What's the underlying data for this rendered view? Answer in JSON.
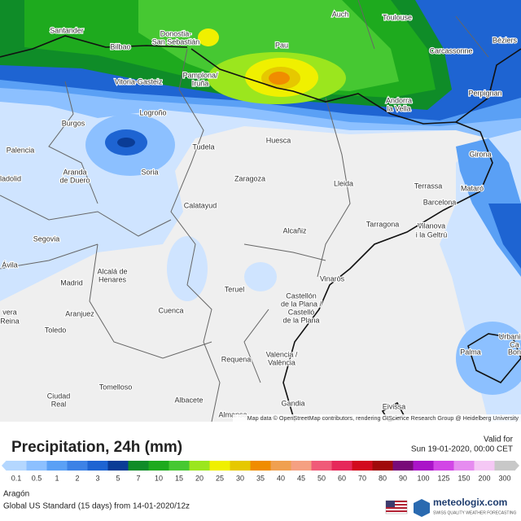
{
  "map": {
    "places": [
      "Santander",
      "Bilbao",
      "Donostia-",
      "San Sebastián",
      "Auch",
      "Toulouse",
      "Béziers",
      "Pau",
      "Carcassonne",
      "Vitoria-Gasteiz",
      "Pamplona/",
      "Iruña",
      "Perpignan",
      "Andorra",
      "la Vella",
      "Logroño",
      "Burgos",
      "Huesca",
      "Tudela",
      "Girona",
      "Palencia",
      "Aranda",
      "de Duero",
      "Soria",
      "Zaragoza",
      "Lleida",
      "Terrassa",
      "Mataró",
      "lladolid",
      "Barcelona",
      "Calatayud",
      "Tarragona",
      "Vilanova",
      "i la Geltrú",
      "Alcañiz",
      "Segovia",
      "Ávila",
      "Alcalá de",
      "Henares",
      "Madrid",
      "Vinaròs",
      "Teruel",
      "Castellón",
      "de la Plana /",
      "Castelló",
      "de la Plana",
      "Aranjuez",
      "Cuenca",
      "Toledo",
      "vera",
      "Reina",
      "Urbani",
      "Ca",
      "Bon",
      "Palma",
      "Valencia /",
      "València",
      "Requena",
      "Tomelloso",
      "Ciudad",
      "Real",
      "Albacete",
      "Gandia",
      "Eivissa",
      "Almansa"
    ],
    "attribution": "Map data © OpenStreetMap contributors, rendering GIScience Research Group @ Heidelberg University"
  },
  "footer": {
    "title": "Precipitation, 24h (mm)",
    "valid_label": "Valid for",
    "valid_time": "Sun 19-01-2020, 00:00 CET",
    "region": "Aragón",
    "model": "Global US Standard (15 days)  from  14-01-2020/12z",
    "brand": "meteologix.com",
    "tagline": "SWISS QUALITY WEATHER FORECASTING"
  },
  "legend": {
    "values": [
      0.1,
      0.5,
      1,
      2,
      3,
      5,
      7,
      10,
      15,
      20,
      25,
      30,
      35,
      40,
      45,
      50,
      60,
      70,
      80,
      90,
      100,
      125,
      150,
      200,
      300
    ],
    "colors": [
      "#b4d7ff",
      "#8cc0ff",
      "#5aa0f5",
      "#3c82e6",
      "#1e64d2",
      "#0a3c96",
      "#0f8c28",
      "#1eaa1e",
      "#46c832",
      "#9be61e",
      "#f0f000",
      "#e6c800",
      "#f08c00",
      "#f0a050",
      "#f5a082",
      "#f05a78",
      "#e6285a",
      "#d20a1e",
      "#a00a0a",
      "#780a78",
      "#aa14c8",
      "#d246e6",
      "#e68cf0",
      "#f5c8f5",
      "#c8c8c8"
    ]
  }
}
